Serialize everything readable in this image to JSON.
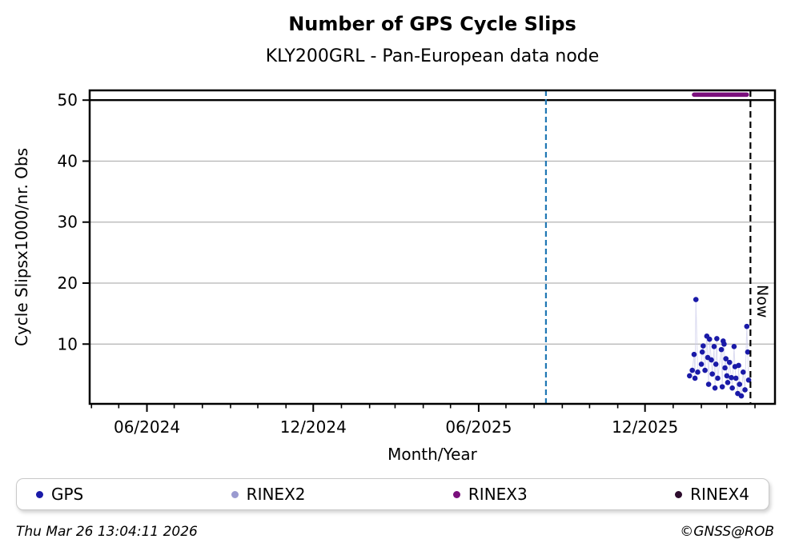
{
  "page": {
    "title": "Number of GPS Cycle Slips",
    "subtitle": "KLY200GRL - Pan-European data node",
    "footer_left": "Thu Mar 26 13:04:11 2026",
    "footer_right": "©GNSS@ROB"
  },
  "legend": {
    "items": [
      {
        "label": "GPS",
        "color": "#1a1aa8"
      },
      {
        "label": "RINEX2",
        "color": "#9a9ad0"
      },
      {
        "label": "RINEX3",
        "color": "#7a0f7c"
      },
      {
        "label": "RINEX4",
        "color": "#2d0c2d"
      }
    ]
  },
  "chart_data": {
    "type": "scatter",
    "title": "Number of GPS Cycle Slips",
    "subtitle": "KLY200GRL - Pan-European data node",
    "xlabel": "Month/Year",
    "ylabel": "Cycle Slipsx1000/nr. Obs",
    "ylim": [
      0.2,
      51.6
    ],
    "y_ticks": [
      10,
      20,
      30,
      40,
      50
    ],
    "grid": true,
    "grid_color": "#b3b3b3",
    "x_range": [
      "2024-03-30",
      "2026-04-23"
    ],
    "x_major_ticks": [
      {
        "label": "06/2024",
        "date": "2024-06-01"
      },
      {
        "label": "12/2024",
        "date": "2024-12-01"
      },
      {
        "label": "06/2025",
        "date": "2025-06-01"
      },
      {
        "label": "12/2025",
        "date": "2025-12-01"
      }
    ],
    "x_minor_ticks": {
      "start": "2024-04-01",
      "end": "2026-04-01",
      "step": "month"
    },
    "threshold_line": {
      "value": 50,
      "color": "#000000"
    },
    "event_line": {
      "date": "2025-08-14",
      "color": "#1f77b4",
      "style": "dashed"
    },
    "now_line": {
      "date": "2026-03-27",
      "label": "Now",
      "color": "#000000",
      "style": "dashed"
    },
    "legend_position": "bottom",
    "series": [
      {
        "name": "GPS",
        "color": "#1a1aa8",
        "type": "points",
        "marker": "circle",
        "connector_color": "#c9c9ea",
        "points": [
          [
            "2026-01-19",
            4.8
          ],
          [
            "2026-01-22",
            5.7
          ],
          [
            "2026-01-24",
            8.3
          ],
          [
            "2026-01-25",
            4.4
          ],
          [
            "2026-01-26",
            17.3
          ],
          [
            "2026-01-28",
            5.4
          ],
          [
            "2026-02-01",
            6.7
          ],
          [
            "2026-02-02",
            8.7
          ],
          [
            "2026-02-03",
            9.7
          ],
          [
            "2026-02-05",
            5.7
          ],
          [
            "2026-02-07",
            11.3
          ],
          [
            "2026-02-08",
            7.8
          ],
          [
            "2026-02-09",
            3.4
          ],
          [
            "2026-02-10",
            10.8
          ],
          [
            "2026-02-12",
            7.4
          ],
          [
            "2026-02-13",
            5.1
          ],
          [
            "2026-02-15",
            9.6
          ],
          [
            "2026-02-16",
            2.8
          ],
          [
            "2026-02-17",
            6.7
          ],
          [
            "2026-02-18",
            10.9
          ],
          [
            "2026-02-19",
            4.4
          ],
          [
            "2026-02-23",
            9.1
          ],
          [
            "2026-02-24",
            3.0
          ],
          [
            "2026-02-25",
            10.5
          ],
          [
            "2026-02-26",
            10.0
          ],
          [
            "2026-02-27",
            6.1
          ],
          [
            "2026-02-28",
            7.6
          ],
          [
            "2026-03-01",
            4.8
          ],
          [
            "2026-03-02",
            3.7
          ],
          [
            "2026-03-04",
            7.0
          ],
          [
            "2026-03-06",
            4.5
          ],
          [
            "2026-03-07",
            2.8
          ],
          [
            "2026-03-09",
            9.6
          ],
          [
            "2026-03-10",
            6.3
          ],
          [
            "2026-03-11",
            4.4
          ],
          [
            "2026-03-13",
            1.9
          ],
          [
            "2026-03-14",
            6.5
          ],
          [
            "2026-03-15",
            3.4
          ],
          [
            "2026-03-17",
            1.5
          ],
          [
            "2026-03-19",
            5.4
          ],
          [
            "2026-03-21",
            2.5
          ],
          [
            "2026-03-23",
            12.9
          ],
          [
            "2026-03-24",
            8.7
          ],
          [
            "2026-03-25",
            4.1
          ]
        ]
      },
      {
        "name": "RINEX2",
        "color": "#9a9ad0",
        "type": "points",
        "points": []
      },
      {
        "name": "RINEX3",
        "color": "#7a0f7c",
        "type": "segment",
        "start": "2026-01-24",
        "end": "2026-03-23",
        "value": 50.9
      },
      {
        "name": "RINEX4",
        "color": "#2d0c2d",
        "type": "points",
        "points": []
      }
    ]
  }
}
